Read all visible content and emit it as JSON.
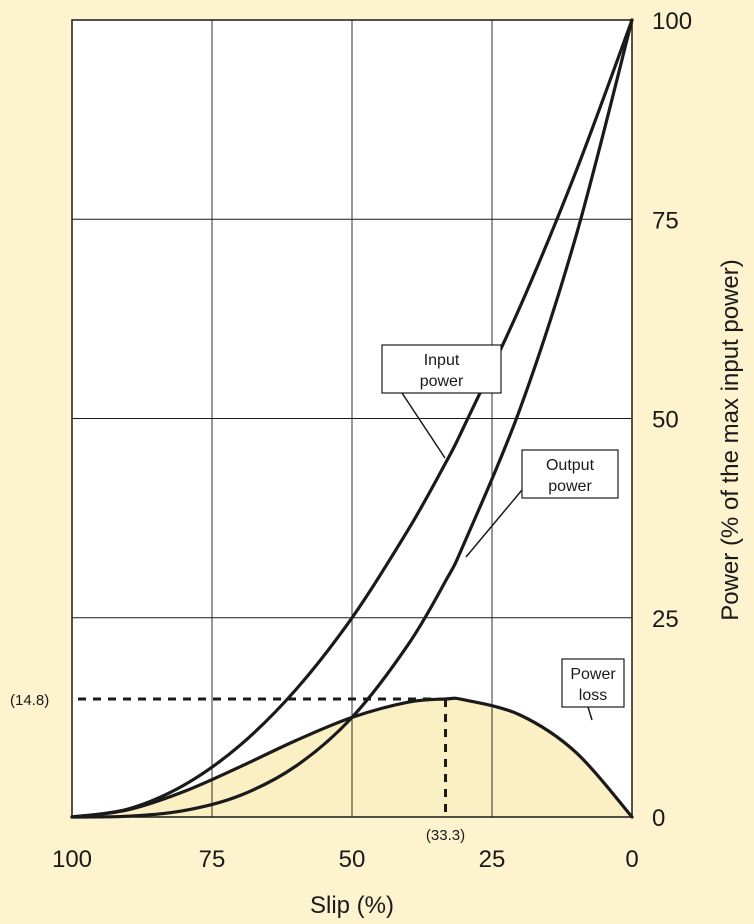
{
  "chart_data": {
    "type": "line",
    "xlabel": "Slip (%)",
    "ylabel": "Power (% of the max input power)",
    "xlim": [
      100,
      0
    ],
    "ylim": [
      0,
      100
    ],
    "x_reversed": true,
    "grid": true,
    "xticks": [
      "100",
      "75",
      "50",
      "25",
      "0"
    ],
    "yticks": [
      "0",
      "25",
      "50",
      "75",
      "100"
    ],
    "series": [
      {
        "name": "Input power",
        "label_lines": [
          "Input",
          "power"
        ],
        "color": "#1a1a1a",
        "x": [
          100,
          90,
          80,
          70,
          60,
          50,
          40,
          33.3,
          30,
          20,
          10,
          0
        ],
        "y": [
          0,
          1,
          4,
          9,
          16,
          25,
          36,
          44.4,
          49,
          64,
          81,
          100
        ]
      },
      {
        "name": "Output power",
        "label_lines": [
          "Output",
          "power"
        ],
        "color": "#1a1a1a",
        "x": [
          100,
          90,
          80,
          70,
          60,
          50,
          40,
          33.3,
          30,
          20,
          10,
          0
        ],
        "y": [
          0,
          0.1,
          0.8,
          2.7,
          6.4,
          12.5,
          21.6,
          29.6,
          34.3,
          51.2,
          72.9,
          100
        ]
      },
      {
        "name": "Power loss",
        "label_lines": [
          "Power",
          "loss"
        ],
        "color": "#1a1a1a",
        "fill": "#fbefc4",
        "x": [
          100,
          90,
          80,
          70,
          60,
          50,
          40,
          33.3,
          30,
          20,
          10,
          0
        ],
        "y": [
          0,
          0.9,
          3.2,
          6.3,
          9.6,
          12.5,
          14.4,
          14.8,
          14.7,
          12.8,
          8.1,
          0
        ]
      }
    ],
    "annotations": [
      {
        "text": "(14.8)",
        "value": 14.8,
        "axis": "y"
      },
      {
        "text": "(33.3)",
        "value": 33.3,
        "axis": "x"
      }
    ],
    "colors": {
      "background": "#fdf3cf",
      "plot": "#ffffff",
      "loss_fill": "#fbefc4",
      "line": "#1a1a1a"
    }
  }
}
